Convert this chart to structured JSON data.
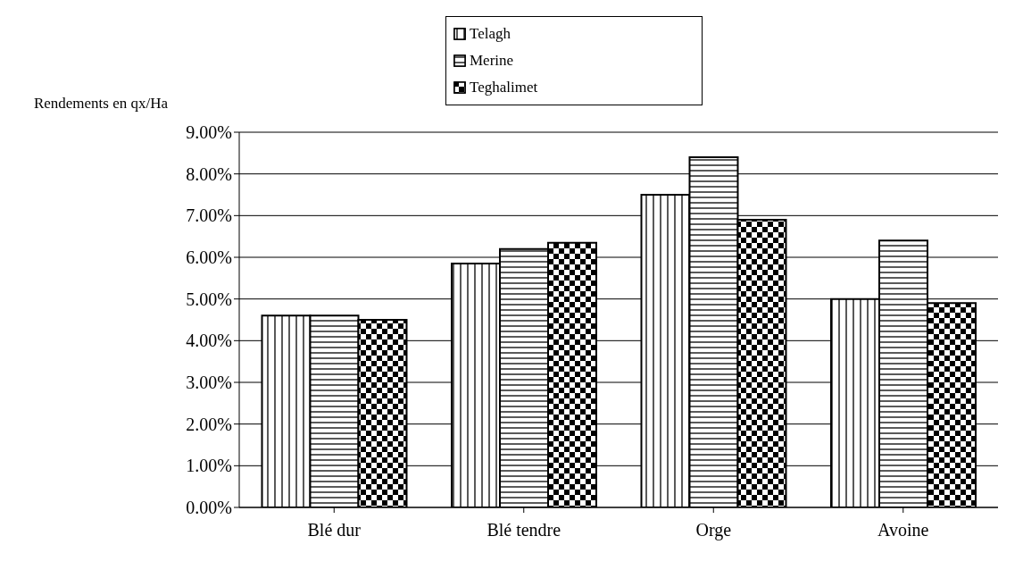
{
  "chart_data": {
    "type": "bar",
    "ylabel": "Rendements en qx/Ha",
    "categories": [
      "Blé dur",
      "Blé tendre",
      "Orge",
      "Avoine"
    ],
    "series": [
      {
        "name": "Telagh",
        "color": "#000000",
        "values": [
          4.6,
          5.85,
          7.5,
          5.0
        ]
      },
      {
        "name": "Merine",
        "color": "#000000",
        "values": [
          4.6,
          6.2,
          8.4,
          6.4
        ]
      },
      {
        "name": "Teghalimet",
        "color": "#000000",
        "values": [
          4.5,
          6.35,
          6.9,
          4.9
        ]
      }
    ],
    "ylim": [
      0,
      9
    ],
    "yticks": [
      {
        "value": 0,
        "label": "0.00%"
      },
      {
        "value": 1,
        "label": "1.00%"
      },
      {
        "value": 2,
        "label": "2.00%"
      },
      {
        "value": 3,
        "label": "3.00%"
      },
      {
        "value": 4,
        "label": "4.00%"
      },
      {
        "value": 5,
        "label": "5.00%"
      },
      {
        "value": 6,
        "label": "6.00%"
      },
      {
        "value": 7,
        "label": "7.00%"
      },
      {
        "value": 8,
        "label": "8.00%"
      },
      {
        "value": 9,
        "label": "9.00%"
      }
    ],
    "grid": "y",
    "legend": "top"
  }
}
